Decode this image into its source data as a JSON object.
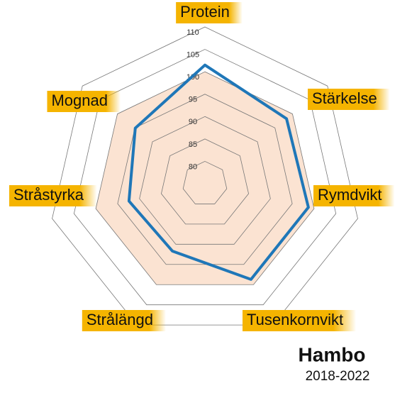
{
  "chart_data": {
    "type": "radar",
    "title": "Hambo",
    "subtitle": "2018-2022",
    "categories": [
      "Protein",
      "Stärkelse",
      "Rymdvikt",
      "Tusenkornvikt",
      "Strålängd",
      "Stråstyrka",
      "Mognad"
    ],
    "series": [
      {
        "color": "#1f77b8",
        "values": [
          101.5,
          98.3,
          98.7,
          98.7,
          91.7,
          92.4,
          94.9
        ]
      }
    ],
    "reference": {
      "value": 100,
      "color": "#fbe3d2"
    },
    "rlim": [
      75,
      110
    ],
    "rticks": [
      80,
      85,
      90,
      95,
      100,
      105,
      110
    ],
    "label_color": "#f5b400"
  }
}
